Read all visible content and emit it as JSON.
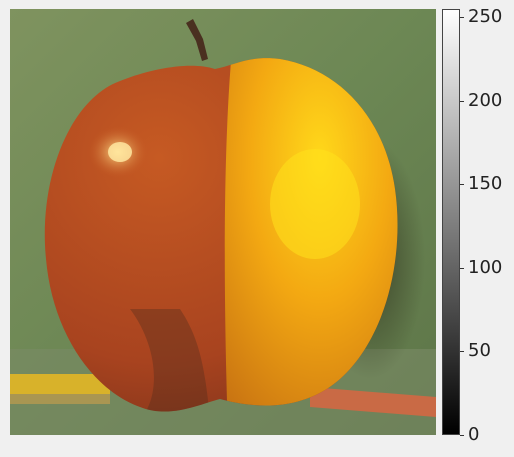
{
  "colorbar": {
    "cmap": "gray",
    "min": 0,
    "max": 255,
    "ticks": [
      "0",
      "50",
      "100",
      "150",
      "200",
      "250"
    ]
  },
  "colors": {
    "background": "#f0f0f0",
    "backdrop": "#6f8a55",
    "apple_red": "#b24a22",
    "orange_peel": "#f0a10c",
    "pencil_yellow": "#d8b22a"
  }
}
